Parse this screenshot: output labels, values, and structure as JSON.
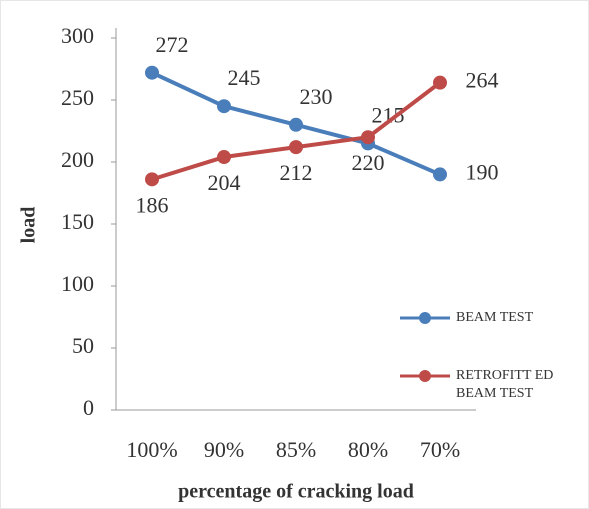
{
  "chart_data": {
    "type": "line",
    "x_label": "percentage of cracking load",
    "y_label": "load",
    "categories": [
      "100%",
      "90%",
      "85%",
      "80%",
      "70%"
    ],
    "series": [
      {
        "name": "BEAM TEST",
        "color": "#4a7ebb",
        "values": [
          272,
          245,
          230,
          215,
          190
        ]
      },
      {
        "name": "RETROFITT ED BEAM TEST",
        "color": "#be4b48",
        "values": [
          186,
          204,
          212,
          220,
          264
        ]
      }
    ],
    "ylim": [
      0,
      300
    ],
    "yticks": [
      0,
      50,
      100,
      150,
      200,
      250,
      300
    ],
    "grid": false,
    "legend": "right"
  }
}
